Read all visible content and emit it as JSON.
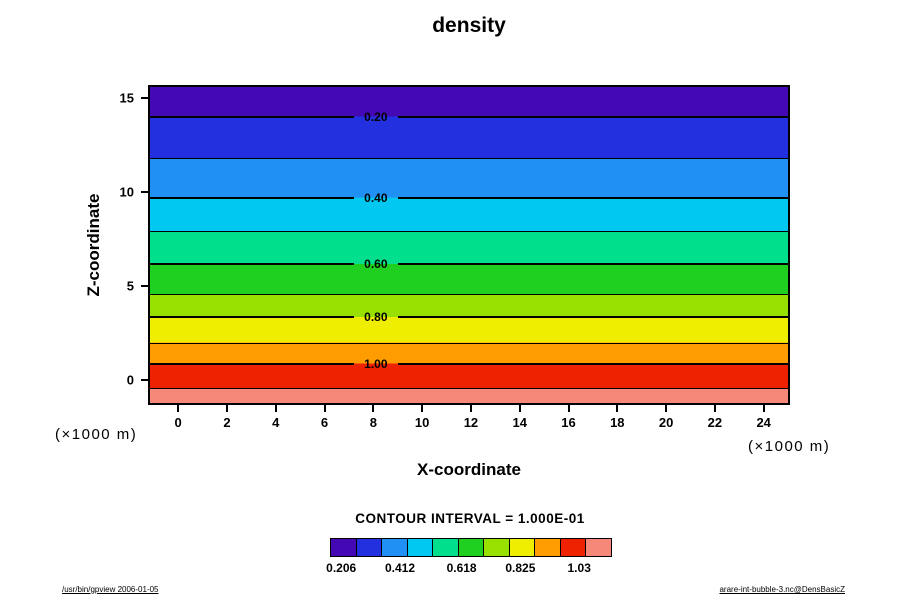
{
  "chart_data": {
    "type": "heatmap",
    "title": "density",
    "xlabel": "X-coordinate",
    "ylabel": "Z-coordinate",
    "x_unit": "(×1000 m)",
    "y_unit": "(×1000 m)",
    "x_range": [
      -1.2,
      25.1
    ],
    "y_range": [
      -1.3,
      15.7
    ],
    "grid": false,
    "x_ticks": [
      {
        "label": "0",
        "p": 4.7
      },
      {
        "label": "2",
        "p": 12.3
      },
      {
        "label": "4",
        "p": 19.9
      },
      {
        "label": "6",
        "p": 27.5
      },
      {
        "label": "8",
        "p": 35.1
      },
      {
        "label": "10",
        "p": 42.7
      },
      {
        "label": "12",
        "p": 50.3
      },
      {
        "label": "14",
        "p": 57.9
      },
      {
        "label": "16",
        "p": 65.5
      },
      {
        "label": "18",
        "p": 73.1
      },
      {
        "label": "20",
        "p": 80.7
      },
      {
        "label": "22",
        "p": 88.3
      },
      {
        "label": "24",
        "p": 95.9
      }
    ],
    "y_ticks": [
      {
        "label": "15",
        "p": 4.1
      },
      {
        "label": "10",
        "p": 33.5
      },
      {
        "label": "5",
        "p": 62.9
      },
      {
        "label": "0",
        "p": 92.2
      }
    ],
    "contour_interval": 0.1,
    "contour_interval_text": "CONTOUR INTERVAL = 1.000E-01",
    "contour_label_x_p": 35.4,
    "contour_lines": [
      {
        "value": 0.2,
        "label": "0.20",
        "z": 14.1,
        "p": 9.4
      },
      {
        "value": 0.3,
        "z": 11.9,
        "p": 22.5
      },
      {
        "value": 0.4,
        "label": "0.40",
        "z": 9.7,
        "p": 35.0
      },
      {
        "value": 0.5,
        "z": 7.9,
        "p": 45.6
      },
      {
        "value": 0.6,
        "label": "0.60",
        "z": 6.2,
        "p": 56.0
      },
      {
        "value": 0.7,
        "z": 4.5,
        "p": 65.6
      },
      {
        "value": 0.8,
        "label": "0.80",
        "z": 3.3,
        "p": 72.8
      },
      {
        "value": 0.9,
        "z": 1.9,
        "p": 80.9
      },
      {
        "value": 1.0,
        "label": "1.00",
        "z": 0.8,
        "p": 87.5
      },
      {
        "value": 1.1,
        "z": -0.5,
        "p": 95.3
      }
    ],
    "bands": [
      {
        "from": 0.1,
        "to": 0.2,
        "from_p": 0,
        "to_p": 9.4,
        "color": "#4409b4"
      },
      {
        "from": 0.2,
        "to": 0.3,
        "from_p": 9.4,
        "to_p": 22.5,
        "color": "#2230e0"
      },
      {
        "from": 0.3,
        "to": 0.4,
        "from_p": 22.5,
        "to_p": 35.0,
        "color": "#2090f5"
      },
      {
        "from": 0.4,
        "to": 0.5,
        "from_p": 35.0,
        "to_p": 45.6,
        "color": "#00c8f0"
      },
      {
        "from": 0.5,
        "to": 0.6,
        "from_p": 45.6,
        "to_p": 56.0,
        "color": "#00e08c"
      },
      {
        "from": 0.6,
        "to": 0.7,
        "from_p": 56.0,
        "to_p": 65.6,
        "color": "#20d020"
      },
      {
        "from": 0.7,
        "to": 0.8,
        "from_p": 65.6,
        "to_p": 72.8,
        "color": "#98e000"
      },
      {
        "from": 0.8,
        "to": 0.9,
        "from_p": 72.8,
        "to_p": 80.9,
        "color": "#f0ee00"
      },
      {
        "from": 0.9,
        "to": 1.0,
        "from_p": 80.9,
        "to_p": 87.5,
        "color": "#ff9c00"
      },
      {
        "from": 1.0,
        "to": 1.1,
        "from_p": 87.5,
        "to_p": 95.3,
        "color": "#ee2200"
      },
      {
        "from": 1.1,
        "to": 1.2,
        "from_p": 95.3,
        "to_p": 100,
        "color": "#f58878"
      }
    ],
    "colorbar": {
      "labels": [
        {
          "label": "0.206",
          "p": 4
        },
        {
          "label": "0.412",
          "p": 25
        },
        {
          "label": "0.618",
          "p": 47
        },
        {
          "label": "0.825",
          "p": 68
        },
        {
          "label": "1.03",
          "p": 89
        }
      ]
    }
  },
  "footer": {
    "left": "/usr/bin/gpview 2006-01-05",
    "right": "arare-int-bubble-3.nc@DensBasicZ"
  }
}
